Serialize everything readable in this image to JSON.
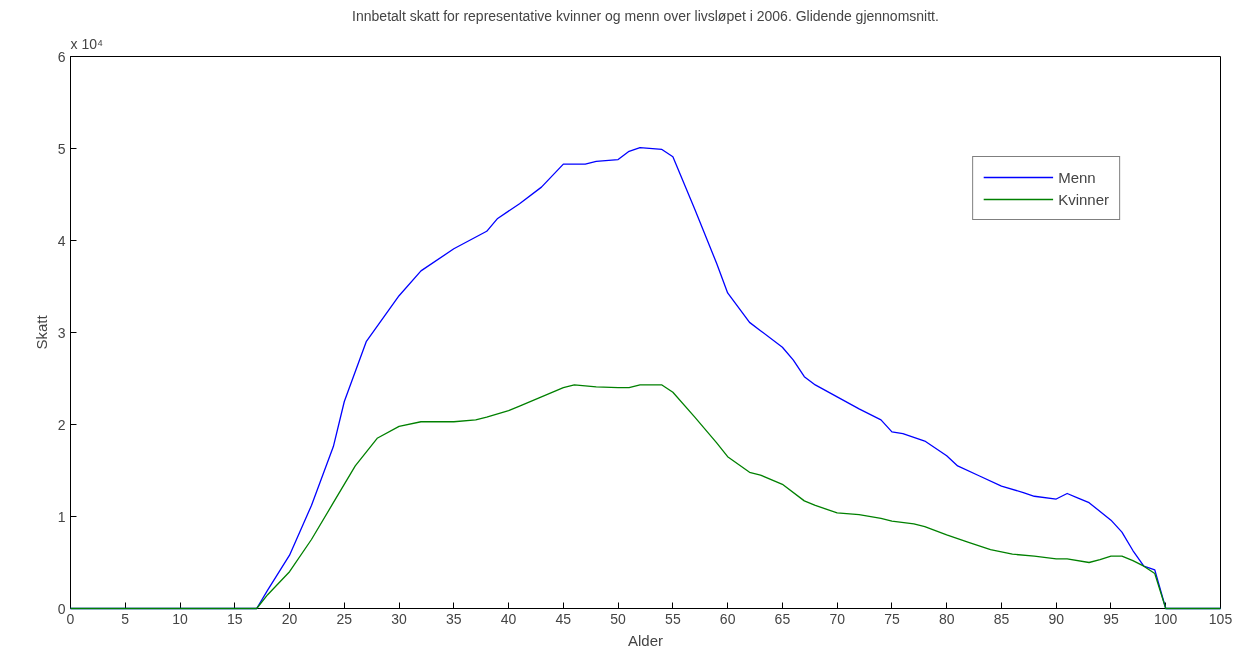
{
  "chart_data": {
    "type": "line",
    "title": "Innbetalt skatt for representative kvinner og menn over livsløpet i 2006. Glidende gjennomsnitt.",
    "xlabel": "Alder",
    "ylabel": "Skatt",
    "annotations": [
      "x 10⁴"
    ],
    "xlim": [
      0,
      105
    ],
    "xticks": [
      0,
      5,
      10,
      15,
      20,
      25,
      30,
      35,
      40,
      45,
      50,
      55,
      60,
      65,
      70,
      75,
      80,
      85,
      90,
      95,
      100,
      105
    ],
    "ylim": [
      0,
      6
    ],
    "yticks": [
      0,
      1,
      2,
      3,
      4,
      5,
      6
    ],
    "grid": false,
    "legend": "top right",
    "line_style": "solid",
    "marker": "none",
    "series": [
      {
        "name": "Menn",
        "color": "#0000ff",
        "x": [
          0,
          17,
          18,
          20,
          22,
          24,
          25,
          27,
          30,
          32,
          35,
          38,
          39,
          41,
          43,
          45,
          47,
          48,
          50,
          51,
          52,
          54,
          55,
          57,
          59,
          60,
          62,
          63,
          65,
          66,
          67,
          68,
          70,
          72,
          74,
          75,
          76,
          78,
          80,
          81,
          83,
          85,
          87,
          88,
          90,
          91,
          92,
          93,
          95,
          96,
          97,
          98,
          99,
          100,
          105
        ],
        "values": [
          0,
          0,
          0.2,
          0.58,
          1.12,
          1.76,
          2.25,
          2.9,
          3.4,
          3.67,
          3.91,
          4.1,
          4.24,
          4.4,
          4.58,
          4.83,
          4.83,
          4.86,
          4.88,
          4.97,
          5.01,
          4.99,
          4.91,
          4.34,
          3.75,
          3.43,
          3.11,
          3.02,
          2.84,
          2.7,
          2.52,
          2.43,
          2.3,
          2.17,
          2.05,
          1.92,
          1.9,
          1.82,
          1.66,
          1.55,
          1.44,
          1.33,
          1.26,
          1.22,
          1.19,
          1.25,
          1.2,
          1.15,
          0.96,
          0.83,
          0.63,
          0.46,
          0.42,
          0,
          0
        ]
      },
      {
        "name": "Kvinner",
        "color": "#008000",
        "x": [
          0,
          17,
          18,
          20,
          22,
          24,
          26,
          28,
          30,
          32,
          35,
          37,
          38,
          40,
          41,
          43,
          45,
          46,
          48,
          50,
          51,
          52,
          54,
          55,
          57,
          59,
          60,
          62,
          63,
          65,
          67,
          68,
          70,
          72,
          74,
          75,
          77,
          78,
          80,
          82,
          84,
          86,
          88,
          90,
          91,
          93,
          94,
          95,
          96,
          97,
          98,
          99,
          100,
          105
        ],
        "values": [
          0,
          0,
          0.15,
          0.4,
          0.75,
          1.15,
          1.55,
          1.85,
          1.98,
          2.03,
          2.03,
          2.05,
          2.08,
          2.15,
          2.2,
          2.3,
          2.4,
          2.43,
          2.41,
          2.4,
          2.4,
          2.43,
          2.43,
          2.35,
          2.08,
          1.8,
          1.65,
          1.48,
          1.45,
          1.35,
          1.17,
          1.12,
          1.04,
          1.02,
          0.98,
          0.95,
          0.92,
          0.89,
          0.8,
          0.72,
          0.64,
          0.59,
          0.57,
          0.54,
          0.54,
          0.5,
          0.53,
          0.57,
          0.57,
          0.52,
          0.46,
          0.38,
          0,
          0
        ]
      }
    ]
  }
}
